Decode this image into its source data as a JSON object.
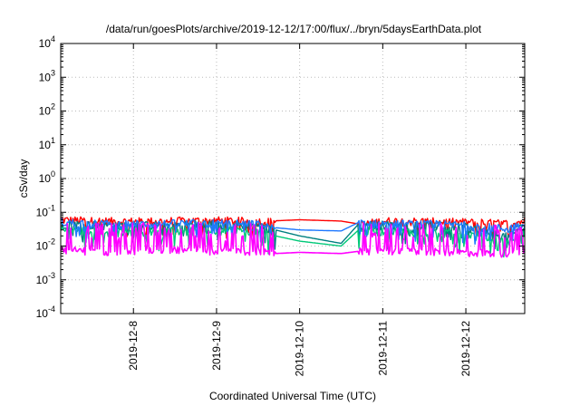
{
  "chart_data": {
    "type": "line",
    "title": "/data/run/goesPlots/archive/2019-12-12/17:00/flux/../bryn/5daysEarthData.plot",
    "xlabel": "Coordinated Universal Time (UTC)",
    "ylabel": "cSv/day",
    "yscale": "log",
    "ylim": [
      0.0001,
      10000
    ],
    "xlim": [
      "2019-12-07T03:00",
      "2019-12-12T17:00"
    ],
    "ytick_labels": [
      {
        "base": "10",
        "exp": "4"
      },
      {
        "base": "10",
        "exp": "3"
      },
      {
        "base": "10",
        "exp": "2"
      },
      {
        "base": "10",
        "exp": "1"
      },
      {
        "base": "10",
        "exp": "0"
      },
      {
        "base": "10",
        "exp": "-1"
      },
      {
        "base": "10",
        "exp": "-2"
      },
      {
        "base": "10",
        "exp": "-3"
      },
      {
        "base": "10",
        "exp": "-4"
      }
    ],
    "ytick_values": [
      10000,
      1000,
      100,
      10,
      1,
      0.1,
      0.01,
      0.001,
      0.0001
    ],
    "xticks": [
      "2019-12-8",
      "2019-12-9",
      "2019-12-10",
      "2019-12-11",
      "2019-12-12"
    ],
    "xtick_values": [
      "2019-12-08T00:00",
      "2019-12-09T00:00",
      "2019-12-10T00:00",
      "2019-12-11T00:00",
      "2019-12-12T00:00"
    ],
    "grid": true,
    "legend": "none",
    "data_gap": [
      "2019-12-09T17:00",
      "2019-12-10T17:00"
    ],
    "series": [
      {
        "color": "#ff0000",
        "x": [
          "2019-12-07T03:00",
          "2019-12-07T12:00",
          "2019-12-08T00:00",
          "2019-12-08T12:00",
          "2019-12-09T00:00",
          "2019-12-09T12:00",
          "2019-12-09T17:00",
          "2019-12-10T00:00",
          "2019-12-10T12:00",
          "2019-12-10T17:00",
          "2019-12-11T00:00",
          "2019-12-11T12:00",
          "2019-12-12T00:00",
          "2019-12-12T12:00",
          "2019-12-12T17:00"
        ],
        "y": [
          0.065,
          0.06,
          0.058,
          0.06,
          0.062,
          0.058,
          0.056,
          0.06,
          0.055,
          0.045,
          0.06,
          0.058,
          0.055,
          0.05,
          0.06
        ]
      },
      {
        "color": "#008080",
        "x": [
          "2019-12-07T03:00",
          "2019-12-07T12:00",
          "2019-12-08T00:00",
          "2019-12-08T12:00",
          "2019-12-09T00:00",
          "2019-12-09T12:00",
          "2019-12-09T17:00",
          "2019-12-10T00:00",
          "2019-12-10T12:00",
          "2019-12-10T17:00",
          "2019-12-11T00:00",
          "2019-12-11T12:00",
          "2019-12-12T00:00",
          "2019-12-12T12:00",
          "2019-12-12T17:00"
        ],
        "y": [
          0.05,
          0.046,
          0.044,
          0.046,
          0.048,
          0.044,
          0.03,
          0.02,
          0.012,
          0.045,
          0.046,
          0.044,
          0.04,
          0.02,
          0.045
        ]
      },
      {
        "color": "#00c878",
        "x": [
          "2019-12-07T03:00",
          "2019-12-07T12:00",
          "2019-12-08T00:00",
          "2019-12-08T12:00",
          "2019-12-09T00:00",
          "2019-12-09T12:00",
          "2019-12-09T17:00",
          "2019-12-10T00:00",
          "2019-12-10T12:00",
          "2019-12-10T17:00",
          "2019-12-11T00:00",
          "2019-12-11T12:00",
          "2019-12-12T00:00",
          "2019-12-12T12:00",
          "2019-12-12T17:00"
        ],
        "y": [
          0.035,
          0.03,
          0.028,
          0.03,
          0.032,
          0.028,
          0.02,
          0.014,
          0.01,
          0.03,
          0.03,
          0.028,
          0.025,
          0.014,
          0.03
        ]
      },
      {
        "color": "#1e78ff",
        "x": [
          "2019-12-07T03:00",
          "2019-12-07T12:00",
          "2019-12-08T00:00",
          "2019-12-08T12:00",
          "2019-12-09T00:00",
          "2019-12-09T12:00",
          "2019-12-09T17:00",
          "2019-12-10T00:00",
          "2019-12-10T12:00",
          "2019-12-10T17:00",
          "2019-12-11T00:00",
          "2019-12-11T12:00",
          "2019-12-12T00:00",
          "2019-12-12T12:00",
          "2019-12-12T17:00"
        ],
        "y": [
          0.055,
          0.05,
          0.048,
          0.05,
          0.052,
          0.048,
          0.035,
          0.03,
          0.028,
          0.05,
          0.05,
          0.048,
          0.045,
          0.035,
          0.05
        ]
      },
      {
        "color": "#ff00ff",
        "x": [
          "2019-12-07T03:00",
          "2019-12-07T12:00",
          "2019-12-08T00:00",
          "2019-12-08T12:00",
          "2019-12-09T00:00",
          "2019-12-09T12:00",
          "2019-12-09T17:00",
          "2019-12-10T00:00",
          "2019-12-10T12:00",
          "2019-12-10T17:00",
          "2019-12-11T00:00",
          "2019-12-11T12:00",
          "2019-12-12T00:00",
          "2019-12-12T12:00",
          "2019-12-12T17:00"
        ],
        "y": [
          0.008,
          0.007,
          0.007,
          0.008,
          0.007,
          0.007,
          0.006,
          0.0065,
          0.006,
          0.007,
          0.007,
          0.007,
          0.0065,
          0.006,
          0.007
        ]
      }
    ]
  }
}
